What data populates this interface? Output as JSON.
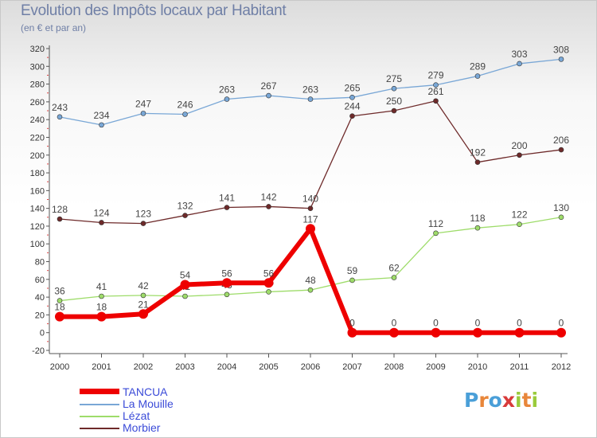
{
  "title": "Evolution des Impôts locaux par Habitant",
  "subtitle": "(en € et par an)",
  "chart_data": {
    "type": "line",
    "title": "Evolution des Impôts locaux par Habitant",
    "subtitle": "(en € et par an)",
    "xlabel": "",
    "ylabel": "",
    "categories": [
      "2000",
      "2001",
      "2002",
      "2003",
      "2004",
      "2005",
      "2006",
      "2007",
      "2008",
      "2009",
      "2010",
      "2011",
      "2012"
    ],
    "ylim": [
      -20,
      320
    ],
    "yticks": [
      -20,
      0,
      20,
      40,
      60,
      80,
      100,
      120,
      140,
      160,
      180,
      200,
      220,
      240,
      260,
      280,
      300,
      320
    ],
    "grid": false,
    "legend_position": "bottom-left",
    "series": [
      {
        "name": "TANCUA",
        "color": "#ee0000",
        "width": 6,
        "labels_below": true,
        "values": [
          18,
          18,
          21,
          54,
          56,
          56,
          117,
          0,
          0,
          0,
          0,
          0,
          0
        ]
      },
      {
        "name": "La Mouille",
        "color": "#79a7d6",
        "width": 1.3,
        "values": [
          243,
          234,
          247,
          246,
          263,
          267,
          263,
          265,
          275,
          279,
          289,
          303,
          308
        ]
      },
      {
        "name": "Lézat",
        "color": "#9edc6a",
        "width": 1.3,
        "values": [
          36,
          41,
          42,
          41,
          43,
          46,
          48,
          59,
          62,
          112,
          118,
          122,
          130
        ]
      },
      {
        "name": "Morbier",
        "color": "#6e2a2a",
        "width": 1.3,
        "values": [
          128,
          124,
          123,
          132,
          141,
          142,
          140,
          244,
          250,
          261,
          192,
          200,
          206
        ]
      }
    ]
  },
  "legend": {
    "items": [
      {
        "label": "TANCUA",
        "color": "#ee0000"
      },
      {
        "label": "La Mouille",
        "color": "#79a7d6"
      },
      {
        "label": "Lézat",
        "color": "#9edc6a"
      },
      {
        "label": "Morbier",
        "color": "#6e2a2a"
      }
    ]
  },
  "logo": {
    "letters": [
      "P",
      "r",
      "o",
      "x",
      "i",
      "t",
      "i"
    ],
    "colors": [
      "#4a9fd8",
      "#e8863a",
      "#4a9fd8",
      "#d83a3a",
      "#9acb3c",
      "#e8863a",
      "#9acb3c"
    ]
  }
}
